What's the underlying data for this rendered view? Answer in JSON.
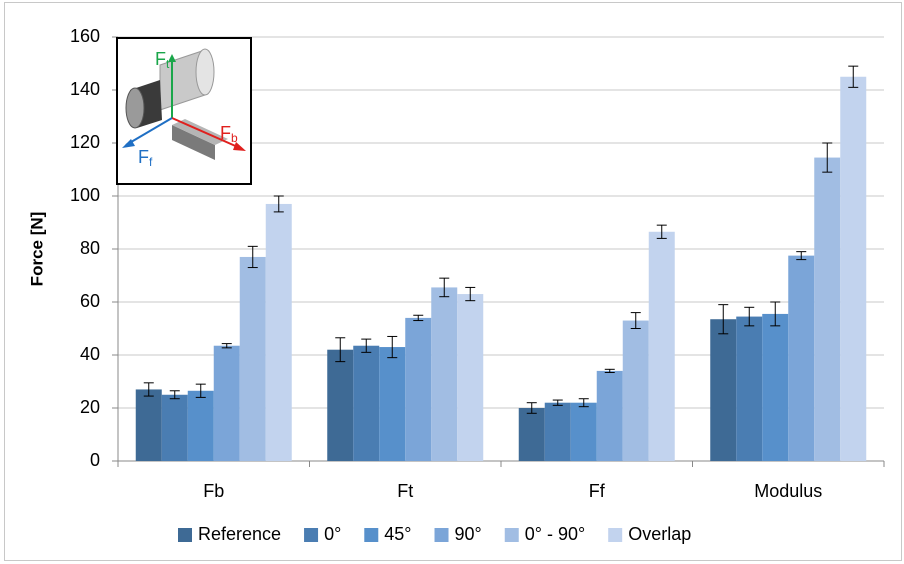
{
  "chart_data": {
    "type": "bar",
    "ylabel": "Force [N]",
    "categories": [
      "Fb",
      "Ft",
      "Ff",
      "Modulus"
    ],
    "series": [
      {
        "name": "Reference",
        "color": "#3e6a95",
        "values": [
          27,
          42,
          20,
          53.5
        ],
        "errors": [
          2.5,
          4.5,
          2,
          5.5
        ]
      },
      {
        "name": "0°",
        "color": "#4a7db2",
        "values": [
          25,
          43.5,
          22,
          54.5
        ],
        "errors": [
          1.5,
          2.5,
          1,
          3.5
        ]
      },
      {
        "name": "45°",
        "color": "#5790cb",
        "values": [
          26.5,
          43,
          22,
          55.5
        ],
        "errors": [
          2.5,
          4,
          1.5,
          4.5
        ]
      },
      {
        "name": "90°",
        "color": "#7ba5d8",
        "values": [
          43.5,
          54,
          34,
          77.5
        ],
        "errors": [
          0.8,
          1,
          0.6,
          1.5
        ]
      },
      {
        "name": "0° - 90°",
        "color": "#a1bde3",
        "values": [
          77,
          65.5,
          53,
          114.5
        ],
        "errors": [
          4,
          3.5,
          3,
          5.5
        ]
      },
      {
        "name": "Overlap",
        "color": "#c2d3ee",
        "values": [
          97,
          63,
          86.5,
          145
        ],
        "errors": [
          3,
          2.5,
          2.5,
          4
        ]
      }
    ],
    "ylim": [
      0,
      160
    ],
    "yticks": [
      0,
      20,
      40,
      60,
      80,
      100,
      120,
      140,
      160
    ],
    "grid": true,
    "inset_labels": [
      [
        "F",
        "t"
      ],
      [
        "F",
        "b"
      ],
      [
        "F",
        "f"
      ]
    ]
  }
}
